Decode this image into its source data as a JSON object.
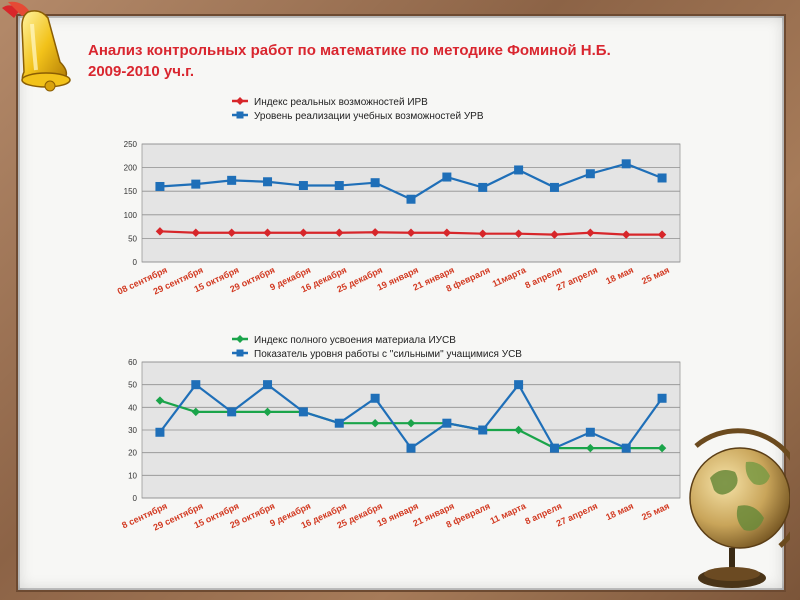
{
  "title": {
    "line1": "Анализ контрольных работ по математике по методике Фоминой Н.Б.",
    "line2": "2009-2010 уч.г."
  },
  "colors": {
    "red_series": "#d7262a",
    "blue_series": "#1f6fb8",
    "green_series": "#1aa44a",
    "title": "#d9262f",
    "plot_bg": "#e4e4e4"
  },
  "chart_data": [
    {
      "type": "line",
      "categories": [
        "08 сентября",
        "29 сентября",
        "15 октября",
        "29 октября",
        "9 декабря",
        "16 декабря",
        "25 декабря",
        "19 января",
        "21 января",
        "8 февраля",
        "11марта",
        "8 апреля",
        "27 апреля",
        "18 мая",
        "25 мая"
      ],
      "series": [
        {
          "name": "Индекс реальных возможностей ИРВ",
          "color": "#d7262a",
          "marker": "diamond",
          "values": [
            65,
            62,
            62,
            62,
            62,
            62,
            63,
            62,
            62,
            60,
            60,
            58,
            62,
            58,
            58
          ]
        },
        {
          "name": "Уровень реализации учебных возможностей УРВ",
          "color": "#1f6fb8",
          "marker": "square",
          "values": [
            160,
            165,
            173,
            170,
            162,
            162,
            168,
            133,
            180,
            158,
            195,
            158,
            187,
            208,
            178
          ]
        }
      ],
      "yticks": [
        0,
        50,
        100,
        150,
        200,
        250
      ],
      "ylim": [
        0,
        250
      ],
      "grid": true,
      "legend": "top-left"
    },
    {
      "type": "line",
      "categories": [
        "8 сентября",
        "29 сентября",
        "15 октября",
        "29 октября",
        "9 декабря",
        "16 декабря",
        "25 декабря",
        "19 января",
        "21 января",
        "8 февраля",
        "11 марта",
        "8 апреля",
        "27 апреля",
        "18 мая",
        "25 мая"
      ],
      "series": [
        {
          "name": "Индекс полного усвоения материала ИУСВ",
          "color": "#1aa44a",
          "marker": "diamond",
          "values": [
            43,
            38,
            38,
            38,
            38,
            33,
            33,
            33,
            33,
            30,
            30,
            22,
            22,
            22,
            22
          ]
        },
        {
          "name": "Показатель уровня работы с \"сильными\" учащимися УСВ",
          "color": "#1f6fb8",
          "marker": "square",
          "values": [
            29,
            50,
            38,
            50,
            38,
            33,
            44,
            22,
            33,
            30,
            50,
            22,
            29,
            22,
            44
          ]
        }
      ],
      "yticks": [
        0,
        10,
        20,
        30,
        40,
        50,
        60
      ],
      "ylim": [
        0,
        60
      ],
      "grid": true,
      "legend": "top-left"
    }
  ]
}
